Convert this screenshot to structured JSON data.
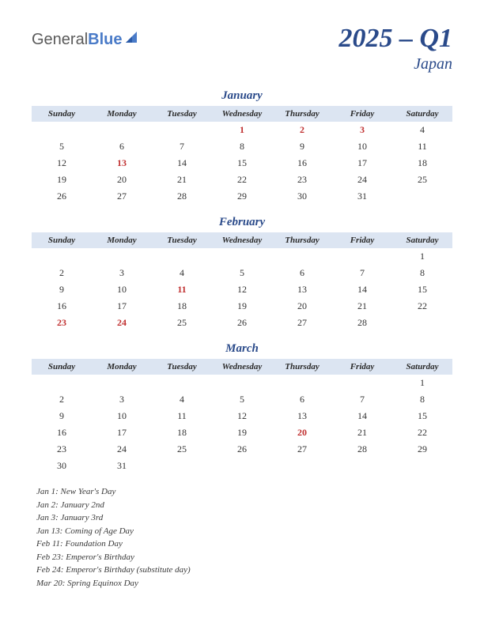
{
  "logo": {
    "part1": "General",
    "part2": "Blue"
  },
  "title": "2025 – Q1",
  "country": "Japan",
  "header_bg": "#dce5f2",
  "accent_color": "#2a4a8a",
  "holiday_color": "#c03030",
  "day_headers": [
    "Sunday",
    "Monday",
    "Tuesday",
    "Wednesday",
    "Thursday",
    "Friday",
    "Saturday"
  ],
  "months": [
    {
      "name": "January",
      "weeks": [
        [
          {
            "d": ""
          },
          {
            "d": ""
          },
          {
            "d": ""
          },
          {
            "d": "1",
            "h": true
          },
          {
            "d": "2",
            "h": true
          },
          {
            "d": "3",
            "h": true
          },
          {
            "d": "4"
          }
        ],
        [
          {
            "d": "5"
          },
          {
            "d": "6"
          },
          {
            "d": "7"
          },
          {
            "d": "8"
          },
          {
            "d": "9"
          },
          {
            "d": "10"
          },
          {
            "d": "11"
          }
        ],
        [
          {
            "d": "12"
          },
          {
            "d": "13",
            "h": true
          },
          {
            "d": "14"
          },
          {
            "d": "15"
          },
          {
            "d": "16"
          },
          {
            "d": "17"
          },
          {
            "d": "18"
          }
        ],
        [
          {
            "d": "19"
          },
          {
            "d": "20"
          },
          {
            "d": "21"
          },
          {
            "d": "22"
          },
          {
            "d": "23"
          },
          {
            "d": "24"
          },
          {
            "d": "25"
          }
        ],
        [
          {
            "d": "26"
          },
          {
            "d": "27"
          },
          {
            "d": "28"
          },
          {
            "d": "29"
          },
          {
            "d": "30"
          },
          {
            "d": "31"
          },
          {
            "d": ""
          }
        ]
      ]
    },
    {
      "name": "February",
      "weeks": [
        [
          {
            "d": ""
          },
          {
            "d": ""
          },
          {
            "d": ""
          },
          {
            "d": ""
          },
          {
            "d": ""
          },
          {
            "d": ""
          },
          {
            "d": "1"
          }
        ],
        [
          {
            "d": "2"
          },
          {
            "d": "3"
          },
          {
            "d": "4"
          },
          {
            "d": "5"
          },
          {
            "d": "6"
          },
          {
            "d": "7"
          },
          {
            "d": "8"
          }
        ],
        [
          {
            "d": "9"
          },
          {
            "d": "10"
          },
          {
            "d": "11",
            "h": true
          },
          {
            "d": "12"
          },
          {
            "d": "13"
          },
          {
            "d": "14"
          },
          {
            "d": "15"
          }
        ],
        [
          {
            "d": "16"
          },
          {
            "d": "17"
          },
          {
            "d": "18"
          },
          {
            "d": "19"
          },
          {
            "d": "20"
          },
          {
            "d": "21"
          },
          {
            "d": "22"
          }
        ],
        [
          {
            "d": "23",
            "h": true
          },
          {
            "d": "24",
            "h": true
          },
          {
            "d": "25"
          },
          {
            "d": "26"
          },
          {
            "d": "27"
          },
          {
            "d": "28"
          },
          {
            "d": ""
          }
        ]
      ]
    },
    {
      "name": "March",
      "weeks": [
        [
          {
            "d": ""
          },
          {
            "d": ""
          },
          {
            "d": ""
          },
          {
            "d": ""
          },
          {
            "d": ""
          },
          {
            "d": ""
          },
          {
            "d": "1"
          }
        ],
        [
          {
            "d": "2"
          },
          {
            "d": "3"
          },
          {
            "d": "4"
          },
          {
            "d": "5"
          },
          {
            "d": "6"
          },
          {
            "d": "7"
          },
          {
            "d": "8"
          }
        ],
        [
          {
            "d": "9"
          },
          {
            "d": "10"
          },
          {
            "d": "11"
          },
          {
            "d": "12"
          },
          {
            "d": "13"
          },
          {
            "d": "14"
          },
          {
            "d": "15"
          }
        ],
        [
          {
            "d": "16"
          },
          {
            "d": "17"
          },
          {
            "d": "18"
          },
          {
            "d": "19"
          },
          {
            "d": "20",
            "h": true
          },
          {
            "d": "21"
          },
          {
            "d": "22"
          }
        ],
        [
          {
            "d": "23"
          },
          {
            "d": "24"
          },
          {
            "d": "25"
          },
          {
            "d": "26"
          },
          {
            "d": "27"
          },
          {
            "d": "28"
          },
          {
            "d": "29"
          }
        ],
        [
          {
            "d": "30"
          },
          {
            "d": "31"
          },
          {
            "d": ""
          },
          {
            "d": ""
          },
          {
            "d": ""
          },
          {
            "d": ""
          },
          {
            "d": ""
          }
        ]
      ]
    }
  ],
  "holiday_list": [
    "Jan 1: New Year's Day",
    "Jan 2: January 2nd",
    "Jan 3: January 3rd",
    "Jan 13: Coming of Age Day",
    "Feb 11: Foundation Day",
    "Feb 23: Emperor's Birthday",
    "Feb 24: Emperor's Birthday (substitute day)",
    "Mar 20: Spring Equinox Day"
  ]
}
